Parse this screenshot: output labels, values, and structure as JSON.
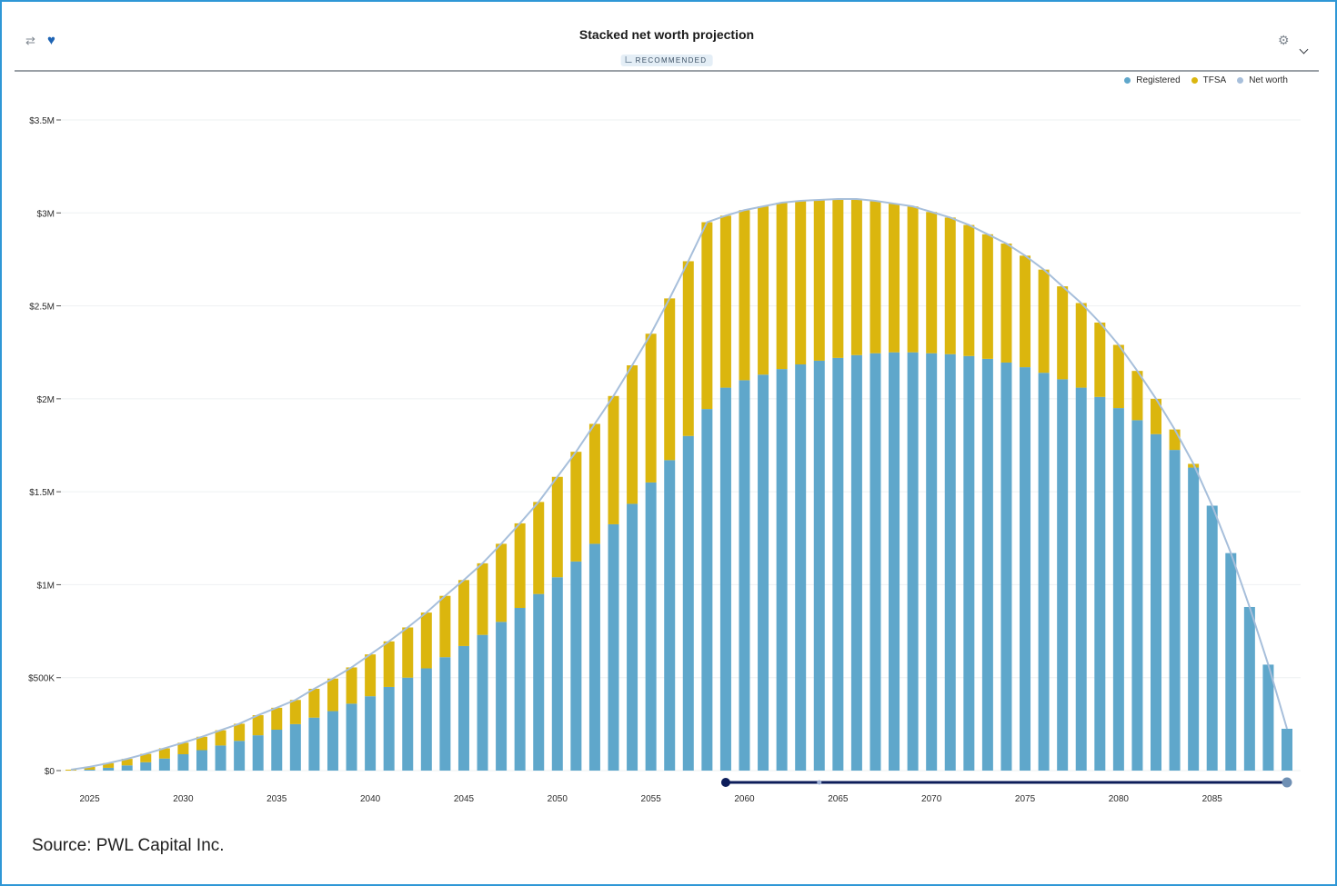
{
  "header": {
    "title": "Stacked net worth projection",
    "badge": "RECOMMENDED"
  },
  "icons": {
    "compare": "compare-icon",
    "favorite": "heart-icon",
    "settings": "settings-icon",
    "menu": "chevron-down-icon"
  },
  "source": "Source: PWL Capital Inc.",
  "chart_data": {
    "type": "bar",
    "stacked": true,
    "title": "Stacked net worth projection",
    "xlabel": "",
    "ylabel": "",
    "ylim": [
      0,
      3500000
    ],
    "yticks": [
      0,
      500000,
      1000000,
      1500000,
      2000000,
      2500000,
      3000000,
      3500000
    ],
    "ytick_labels": [
      "$0",
      "$500K",
      "$1M",
      "$1.5M",
      "$2M",
      "$2.5M",
      "$3M",
      "$3.5M"
    ],
    "xticks": [
      2025,
      2030,
      2035,
      2040,
      2045,
      2050,
      2055,
      2060,
      2065,
      2070,
      2075,
      2080,
      2085
    ],
    "grid": true,
    "legend_position": "top-right",
    "x": [
      2024,
      2025,
      2026,
      2027,
      2028,
      2029,
      2030,
      2031,
      2032,
      2033,
      2034,
      2035,
      2036,
      2037,
      2038,
      2039,
      2040,
      2041,
      2042,
      2043,
      2044,
      2045,
      2046,
      2047,
      2048,
      2049,
      2050,
      2051,
      2052,
      2053,
      2054,
      2055,
      2056,
      2057,
      2058,
      2059,
      2060,
      2061,
      2062,
      2063,
      2064,
      2065,
      2066,
      2067,
      2068,
      2069,
      2070,
      2071,
      2072,
      2073,
      2074,
      2075,
      2076,
      2077,
      2078,
      2079,
      2080,
      2081,
      2082,
      2083,
      2084,
      2085,
      2086,
      2087,
      2088,
      2089
    ],
    "series": [
      {
        "name": "Registered",
        "color": "#5fa7cb",
        "values": [
          0,
          5000,
          15000,
          28000,
          45000,
          65000,
          88000,
          110000,
          135000,
          160000,
          190000,
          220000,
          250000,
          285000,
          320000,
          360000,
          400000,
          450000,
          500000,
          550000,
          610000,
          670000,
          730000,
          800000,
          875000,
          950000,
          1040000,
          1125000,
          1220000,
          1325000,
          1435000,
          1550000,
          1670000,
          1800000,
          1945000,
          2060000,
          2100000,
          2130000,
          2160000,
          2185000,
          2205000,
          2220000,
          2235000,
          2245000,
          2250000,
          2250000,
          2245000,
          2240000,
          2230000,
          2215000,
          2195000,
          2170000,
          2140000,
          2105000,
          2060000,
          2010000,
          1950000,
          1885000,
          1810000,
          1725000,
          1630000,
          1425000,
          1170000,
          880000,
          570000,
          225000
        ]
      },
      {
        "name": "TFSA",
        "color": "#dbb60e",
        "values": [
          5000,
          15000,
          25000,
          35000,
          45000,
          55000,
          62000,
          72000,
          82000,
          92000,
          108000,
          118000,
          130000,
          155000,
          175000,
          195000,
          225000,
          245000,
          270000,
          300000,
          330000,
          355000,
          385000,
          420000,
          455000,
          495000,
          540000,
          590000,
          645000,
          690000,
          745000,
          800000,
          870000,
          940000,
          1005000,
          925000,
          915000,
          905000,
          895000,
          880000,
          865000,
          855000,
          840000,
          820000,
          800000,
          785000,
          760000,
          735000,
          705000,
          670000,
          640000,
          600000,
          555000,
          500000,
          455000,
          400000,
          340000,
          265000,
          190000,
          110000,
          20000,
          0,
          0,
          0,
          0,
          0
        ]
      },
      {
        "name": "Net worth",
        "type": "line",
        "color": "#a7bfdb",
        "values": [
          5000,
          20000,
          40000,
          63000,
          90000,
          120000,
          150000,
          182000,
          217000,
          252000,
          298000,
          338000,
          380000,
          440000,
          495000,
          555000,
          625000,
          695000,
          770000,
          850000,
          940000,
          1025000,
          1115000,
          1220000,
          1330000,
          1445000,
          1580000,
          1715000,
          1865000,
          2015000,
          2180000,
          2350000,
          2540000,
          2740000,
          2950000,
          2985000,
          3015000,
          3035000,
          3055000,
          3065000,
          3070000,
          3075000,
          3075000,
          3065000,
          3050000,
          3035000,
          3005000,
          2975000,
          2935000,
          2885000,
          2835000,
          2770000,
          2695000,
          2605000,
          2515000,
          2410000,
          2290000,
          2150000,
          2000000,
          1835000,
          1650000,
          1425000,
          1170000,
          880000,
          570000,
          225000
        ]
      }
    ],
    "range_selector": {
      "start": 2059,
      "mid": 2064,
      "end": 2089
    }
  }
}
